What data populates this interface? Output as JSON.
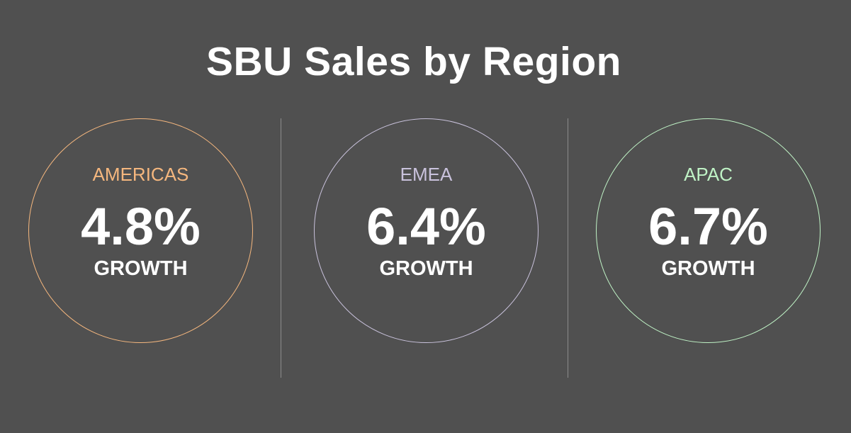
{
  "title": "SBU Sales by Region",
  "regions": [
    {
      "name": "AMERICAS",
      "value": "4.8%",
      "metric": "GROWTH",
      "color": "#f5b77e"
    },
    {
      "name": "EMEA",
      "value": "6.4%",
      "metric": "GROWTH",
      "color": "#c9c2dc"
    },
    {
      "name": "APAC",
      "value": "6.7%",
      "metric": "GROWTH",
      "color": "#bff2c5"
    }
  ],
  "colors": {
    "background": "#505050",
    "text": "#ffffff",
    "divider": "#8c8c8c"
  }
}
